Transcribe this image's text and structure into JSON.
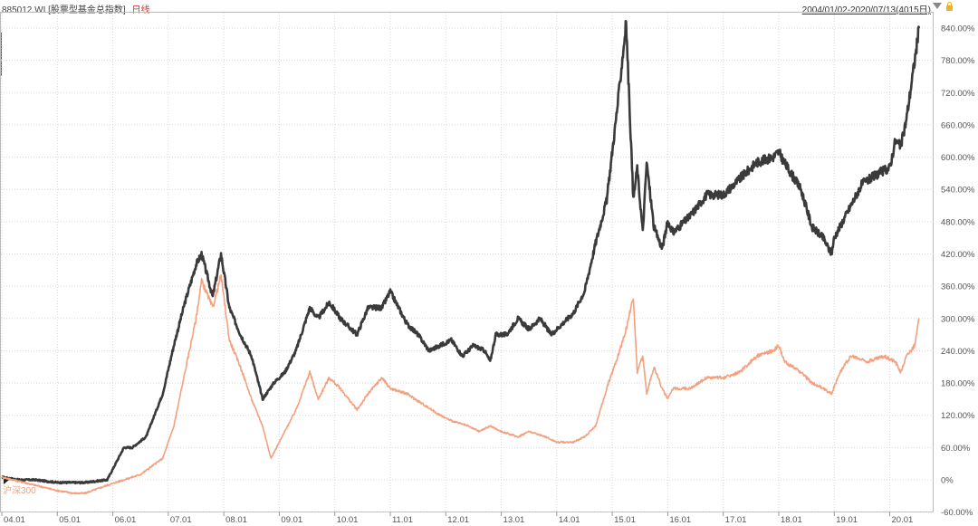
{
  "header": {
    "code": "885012.WI",
    "name": "[股票型基金总指数]",
    "period": "日线",
    "date_range": "2004/01/02-2020/07/13(4015日)"
  },
  "colors": {
    "fund_line": "#3a3a3a",
    "index_line": "#f4a07e",
    "grid": "#d8d8d8",
    "axis_text": "#555555"
  },
  "chart_data": {
    "type": "line",
    "xlabel": "",
    "ylabel": "",
    "ylim": [
      -60,
      860
    ],
    "y_ticks": [
      "840.00%",
      "780.00%",
      "720.00%",
      "660.00%",
      "600.00%",
      "540.00%",
      "480.00%",
      "420.00%",
      "360.00%",
      "300.00%",
      "240.00%",
      "180.00%",
      "120.00%",
      "60.00%",
      "0%",
      "-60.00%"
    ],
    "y_tick_values": [
      840,
      780,
      720,
      660,
      600,
      540,
      480,
      420,
      360,
      300,
      240,
      180,
      120,
      60,
      0,
      -60
    ],
    "x_range": [
      2004.0,
      2020.53
    ],
    "x_ticks": [
      {
        "label": "04.01",
        "t": 2004.0
      },
      {
        "label": "05.01",
        "t": 2005.0
      },
      {
        "label": "06.01",
        "t": 2006.0
      },
      {
        "label": "07.01",
        "t": 2007.0
      },
      {
        "label": "08.01",
        "t": 2008.0
      },
      {
        "label": "09.01",
        "t": 2009.0
      },
      {
        "label": "10.01",
        "t": 2010.0
      },
      {
        "label": "11.01",
        "t": 2011.0
      },
      {
        "label": "12.01",
        "t": 2012.0
      },
      {
        "label": "13.01",
        "t": 2013.0
      },
      {
        "label": "14.01",
        "t": 2014.0
      },
      {
        "label": "15.01",
        "t": 2015.0
      },
      {
        "label": "16.01",
        "t": 2016.0
      },
      {
        "label": "17.01",
        "t": 2017.0
      },
      {
        "label": "18.01",
        "t": 2018.0
      },
      {
        "label": "19.01",
        "t": 2019.0
      },
      {
        "label": "20.01",
        "t": 2020.0
      }
    ],
    "series": [
      {
        "name": "885012.WI",
        "color": "#3a3a3a",
        "x": [
          2004.0,
          2004.3,
          2004.6,
          2005.0,
          2005.3,
          2005.5,
          2005.9,
          2006.2,
          2006.35,
          2006.6,
          2006.9,
          2007.1,
          2007.3,
          2007.5,
          2007.6,
          2007.8,
          2007.95,
          2008.1,
          2008.3,
          2008.5,
          2008.7,
          2008.9,
          2009.1,
          2009.3,
          2009.55,
          2009.7,
          2009.9,
          2010.1,
          2010.4,
          2010.6,
          2010.85,
          2011.0,
          2011.3,
          2011.5,
          2011.7,
          2011.9,
          2012.1,
          2012.3,
          2012.5,
          2012.7,
          2012.8,
          2012.9,
          2013.1,
          2013.3,
          2013.5,
          2013.7,
          2013.9,
          2014.1,
          2014.3,
          2014.5,
          2014.7,
          2014.9,
          2015.1,
          2015.25,
          2015.38,
          2015.45,
          2015.55,
          2015.62,
          2015.75,
          2015.9,
          2016.0,
          2016.1,
          2016.4,
          2016.7,
          2017.0,
          2017.3,
          2017.6,
          2017.9,
          2018.0,
          2018.1,
          2018.4,
          2018.6,
          2018.8,
          2018.95,
          2019.0,
          2019.3,
          2019.5,
          2019.8,
          2020.0,
          2020.1,
          2020.2,
          2020.3,
          2020.45,
          2020.53
        ],
        "values": [
          5,
          0,
          0,
          -5,
          -5,
          -5,
          0,
          60,
          60,
          80,
          160,
          250,
          330,
          400,
          420,
          340,
          420,
          320,
          270,
          230,
          150,
          180,
          200,
          240,
          320,
          300,
          330,
          300,
          270,
          320,
          320,
          350,
          290,
          270,
          240,
          250,
          260,
          230,
          250,
          240,
          220,
          270,
          270,
          300,
          280,
          300,
          270,
          290,
          310,
          350,
          440,
          520,
          700,
          850,
          520,
          580,
          460,
          590,
          470,
          430,
          480,
          460,
          490,
          530,
          530,
          560,
          590,
          600,
          610,
          590,
          540,
          470,
          450,
          420,
          450,
          510,
          550,
          570,
          580,
          630,
          620,
          670,
          780,
          840
        ]
      },
      {
        "name": "沪深300",
        "color": "#f4a07e",
        "x": [
          2004.0,
          2004.4,
          2004.8,
          2005.0,
          2005.3,
          2005.5,
          2005.9,
          2006.2,
          2006.5,
          2006.9,
          2007.1,
          2007.3,
          2007.5,
          2007.6,
          2007.8,
          2007.95,
          2008.1,
          2008.3,
          2008.5,
          2008.7,
          2008.85,
          2009.1,
          2009.3,
          2009.55,
          2009.7,
          2009.9,
          2010.1,
          2010.4,
          2010.6,
          2010.85,
          2011.0,
          2011.3,
          2011.6,
          2011.9,
          2012.1,
          2012.4,
          2012.6,
          2012.8,
          2013.0,
          2013.3,
          2013.5,
          2013.8,
          2014.0,
          2014.3,
          2014.5,
          2014.7,
          2014.9,
          2015.1,
          2015.25,
          2015.38,
          2015.45,
          2015.55,
          2015.62,
          2015.75,
          2015.9,
          2016.0,
          2016.1,
          2016.4,
          2016.7,
          2017.0,
          2017.3,
          2017.6,
          2017.9,
          2018.0,
          2018.1,
          2018.4,
          2018.6,
          2018.8,
          2018.95,
          2019.1,
          2019.3,
          2019.6,
          2019.9,
          2020.1,
          2020.2,
          2020.3,
          2020.45,
          2020.53
        ],
        "values": [
          5,
          -5,
          -15,
          -20,
          -25,
          -25,
          -10,
          0,
          10,
          40,
          100,
          200,
          300,
          370,
          320,
          380,
          260,
          210,
          150,
          100,
          40,
          90,
          130,
          200,
          150,
          190,
          170,
          130,
          160,
          190,
          170,
          160,
          140,
          120,
          110,
          100,
          90,
          100,
          90,
          80,
          90,
          80,
          70,
          70,
          80,
          100,
          170,
          230,
          280,
          340,
          200,
          230,
          160,
          210,
          170,
          150,
          170,
          170,
          190,
          190,
          200,
          230,
          240,
          250,
          220,
          200,
          180,
          170,
          160,
          200,
          230,
          220,
          230,
          220,
          200,
          230,
          250,
          300
        ]
      }
    ]
  }
}
